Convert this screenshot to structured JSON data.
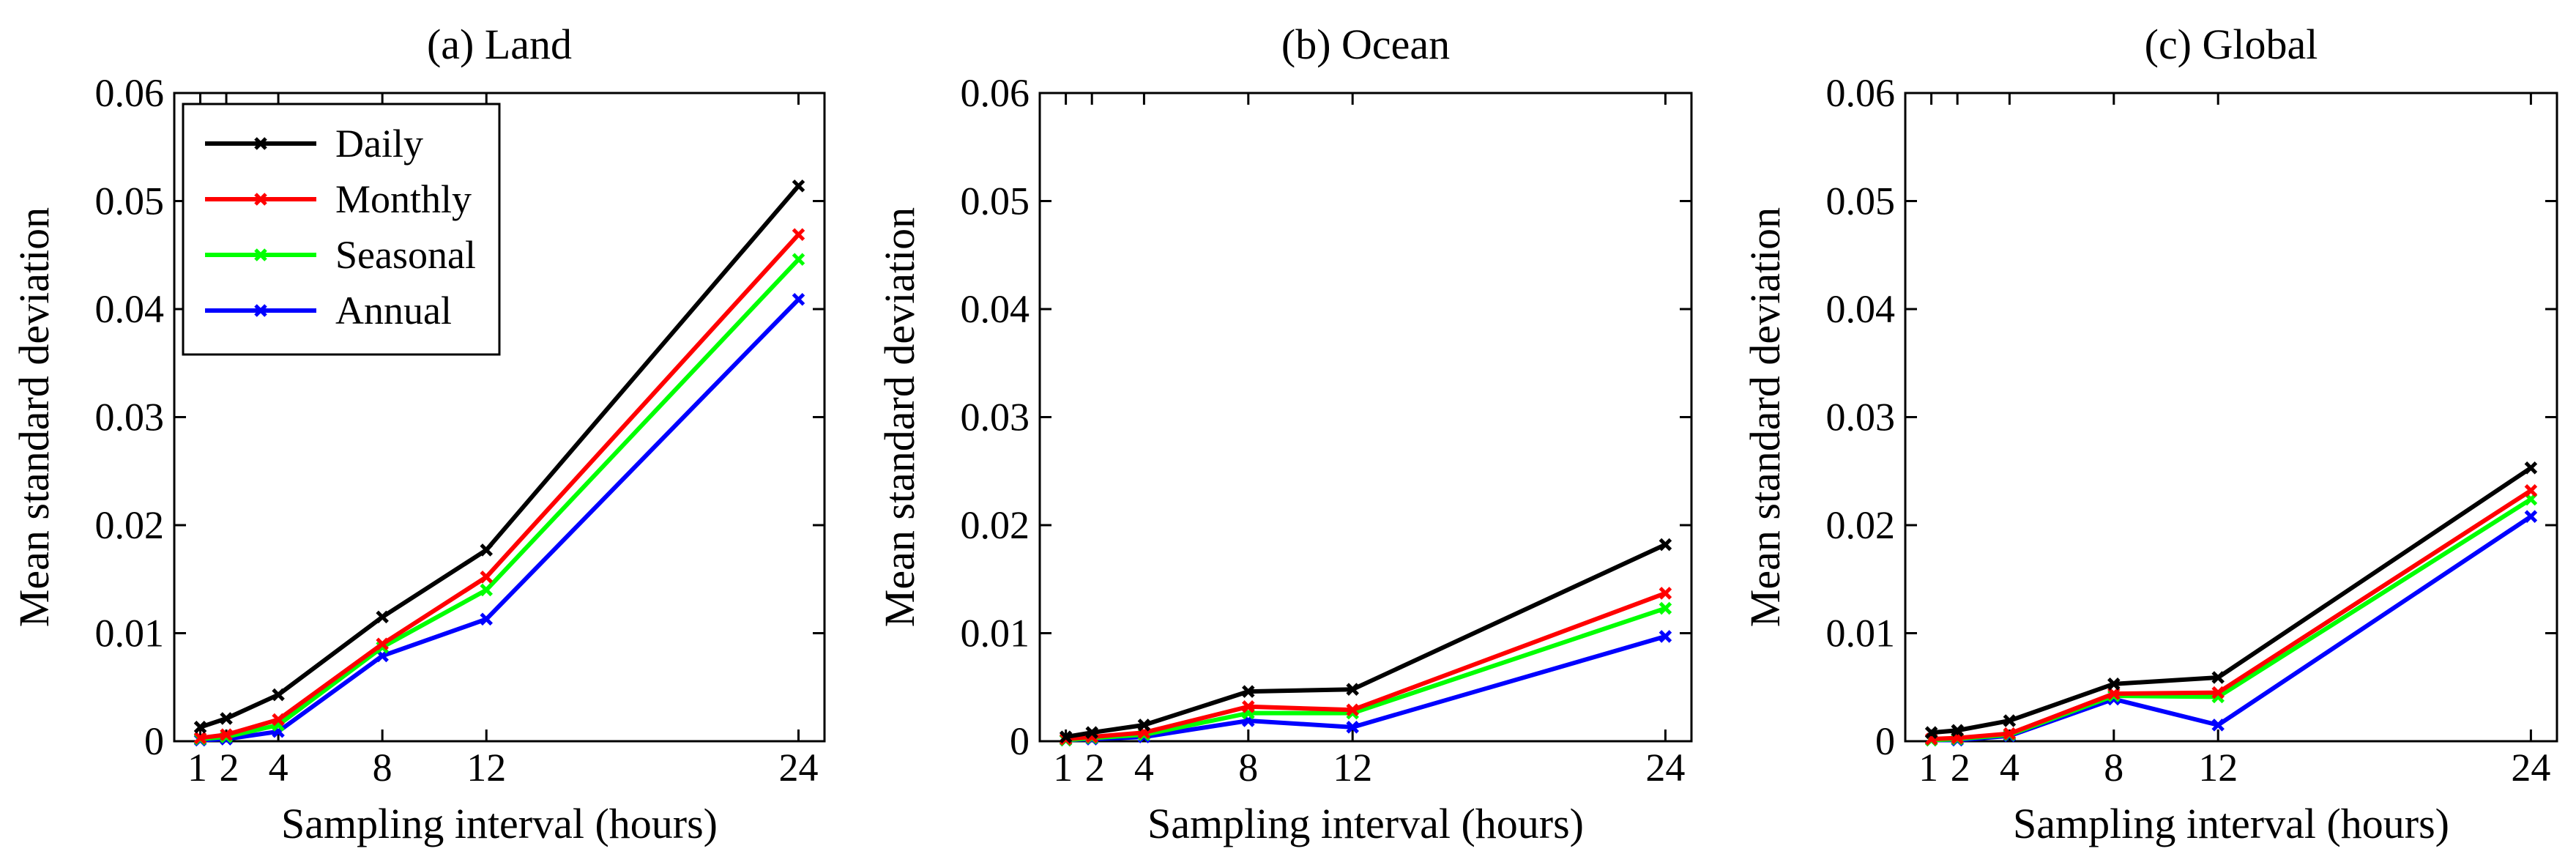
{
  "chart_data": [
    {
      "type": "line",
      "title": "(a) Land",
      "xlabel": "Sampling interval (hours)",
      "ylabel": "Mean standard deviation",
      "xlim": [
        0,
        25
      ],
      "ylim": [
        0,
        0.06
      ],
      "xticks": [
        1,
        2,
        4,
        8,
        12,
        24
      ],
      "xtick_labels": [
        "1",
        "2",
        "4",
        "8",
        "12",
        "24"
      ],
      "yticks": [
        0,
        0.01,
        0.02,
        0.03,
        0.04,
        0.05,
        0.06
      ],
      "ytick_labels": [
        "0",
        "0.01",
        "0.02",
        "0.03",
        "0.04",
        "0.05",
        "0.06"
      ],
      "x": [
        1,
        2,
        4,
        8,
        12,
        24
      ],
      "legend": "top-left",
      "series": [
        {
          "name": "Daily",
          "color": "#000000",
          "values": [
            0.0013,
            0.0021,
            0.0043,
            0.0115,
            0.0177,
            0.0514
          ]
        },
        {
          "name": "Monthly",
          "color": "#ff0000",
          "values": [
            0.0003,
            0.0006,
            0.002,
            0.009,
            0.0152,
            0.0469
          ]
        },
        {
          "name": "Seasonal",
          "color": "#00ff00",
          "values": [
            0.0002,
            0.0004,
            0.0015,
            0.0087,
            0.014,
            0.0446
          ]
        },
        {
          "name": "Annual",
          "color": "#0000ff",
          "values": [
            0.0001,
            0.0002,
            0.0009,
            0.0079,
            0.0113,
            0.0409
          ]
        }
      ]
    },
    {
      "type": "line",
      "title": "(b) Ocean",
      "xlabel": "Sampling interval (hours)",
      "ylabel": "Mean standard deviation",
      "xlim": [
        0,
        25
      ],
      "ylim": [
        0,
        0.06
      ],
      "xticks": [
        1,
        2,
        4,
        8,
        12,
        24
      ],
      "xtick_labels": [
        "1",
        "2",
        "4",
        "8",
        "12",
        "24"
      ],
      "yticks": [
        0,
        0.01,
        0.02,
        0.03,
        0.04,
        0.05,
        0.06
      ],
      "ytick_labels": [
        "0",
        "0.01",
        "0.02",
        "0.03",
        "0.04",
        "0.05",
        "0.06"
      ],
      "x": [
        1,
        2,
        4,
        8,
        12,
        24
      ],
      "series": [
        {
          "name": "Daily",
          "color": "#000000",
          "values": [
            0.0004,
            0.0008,
            0.0015,
            0.0046,
            0.0048,
            0.0182
          ]
        },
        {
          "name": "Monthly",
          "color": "#ff0000",
          "values": [
            0.0002,
            0.0004,
            0.0008,
            0.0032,
            0.0029,
            0.0137
          ]
        },
        {
          "name": "Seasonal",
          "color": "#00ff00",
          "values": [
            0.0001,
            0.0003,
            0.0006,
            0.0026,
            0.0026,
            0.0123
          ]
        },
        {
          "name": "Annual",
          "color": "#0000ff",
          "values": [
            0.0001,
            0.0002,
            0.0004,
            0.0019,
            0.0013,
            0.0097
          ]
        }
      ]
    },
    {
      "type": "line",
      "title": "(c) Global",
      "xlabel": "Sampling interval (hours)",
      "ylabel": "Mean standard deviation",
      "xlim": [
        0,
        25
      ],
      "ylim": [
        0,
        0.06
      ],
      "xticks": [
        1,
        2,
        4,
        8,
        12,
        24
      ],
      "xtick_labels": [
        "1",
        "2",
        "4",
        "8",
        "12",
        "24"
      ],
      "yticks": [
        0,
        0.01,
        0.02,
        0.03,
        0.04,
        0.05,
        0.06
      ],
      "ytick_labels": [
        "0",
        "0.01",
        "0.02",
        "0.03",
        "0.04",
        "0.05",
        "0.06"
      ],
      "x": [
        1,
        2,
        4,
        8,
        12,
        24
      ],
      "series": [
        {
          "name": "Daily",
          "color": "#000000",
          "values": [
            0.0008,
            0.001,
            0.0019,
            0.0053,
            0.0059,
            0.0253
          ]
        },
        {
          "name": "Monthly",
          "color": "#ff0000",
          "values": [
            0.0002,
            0.0003,
            0.0007,
            0.0044,
            0.0045,
            0.0232
          ]
        },
        {
          "name": "Seasonal",
          "color": "#00ff00",
          "values": [
            0.0001,
            0.0002,
            0.0006,
            0.0042,
            0.0041,
            0.0224
          ]
        },
        {
          "name": "Annual",
          "color": "#0000ff",
          "values": [
            0.0001,
            0.0001,
            0.0005,
            0.0039,
            0.0015,
            0.0208
          ]
        }
      ]
    }
  ]
}
